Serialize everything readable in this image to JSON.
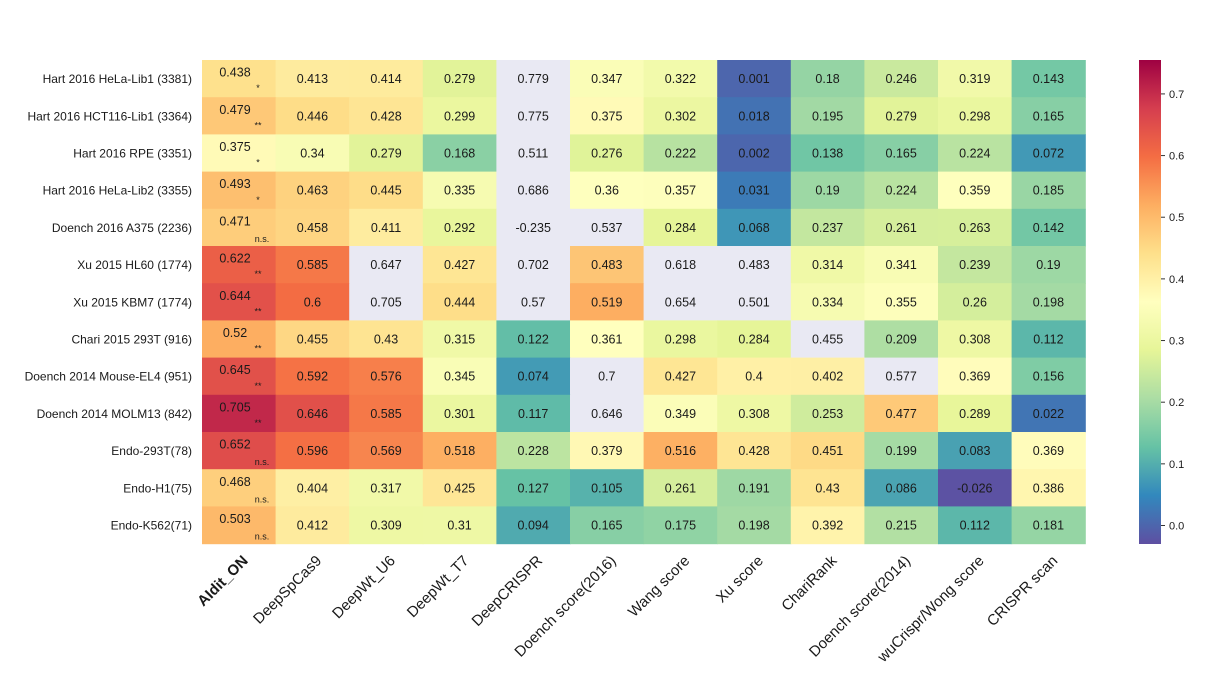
{
  "chart_data": {
    "type": "heatmap",
    "rows": [
      "Hart 2016 HeLa-Lib1 (3381)",
      "Hart 2016 HCT116-Lib1 (3364)",
      "Hart 2016 RPE (3351)",
      "Hart 2016 HeLa-Lib2 (3355)",
      "Doench 2016 A375 (2236)",
      "Xu 2015 HL60 (1774)",
      "Xu 2015 KBM7 (1774)",
      "Chari 2015 293T (916)",
      "Doench 2014 Mouse-EL4 (951)",
      "Doench 2014 MOLM13 (842)",
      "Endo-293T(78)",
      "Endo-H1(75)",
      "Endo-K562(71)"
    ],
    "columns": [
      "AIdit_ON",
      "DeepSpCas9",
      "DeepWt_U6",
      "DeepWt_T7",
      "DeepCRISPR",
      "Doench score(2016)",
      "Wang score",
      "Xu score",
      "ChariRank",
      "Doench score(2014)",
      "wuCrispr/Wong score",
      "CRISPR scan"
    ],
    "values": [
      [
        0.438,
        0.413,
        0.414,
        0.279,
        0.779,
        0.347,
        0.322,
        0.001,
        0.18,
        0.246,
        0.319,
        0.143
      ],
      [
        0.479,
        0.446,
        0.428,
        0.299,
        0.775,
        0.375,
        0.302,
        0.018,
        0.195,
        0.279,
        0.298,
        0.165
      ],
      [
        0.375,
        0.34,
        0.279,
        0.168,
        0.511,
        0.276,
        0.222,
        0.002,
        0.138,
        0.165,
        0.224,
        0.072
      ],
      [
        0.493,
        0.463,
        0.445,
        0.335,
        0.686,
        0.36,
        0.357,
        0.031,
        0.19,
        0.224,
        0.359,
        0.185
      ],
      [
        0.471,
        0.458,
        0.411,
        0.292,
        -0.235,
        0.537,
        0.284,
        0.068,
        0.237,
        0.261,
        0.263,
        0.142
      ],
      [
        0.622,
        0.585,
        0.647,
        0.427,
        0.702,
        0.483,
        0.618,
        0.483,
        0.314,
        0.341,
        0.239,
        0.19
      ],
      [
        0.644,
        0.6,
        0.705,
        0.444,
        0.57,
        0.519,
        0.654,
        0.501,
        0.334,
        0.355,
        0.26,
        0.198
      ],
      [
        0.52,
        0.455,
        0.43,
        0.315,
        0.122,
        0.361,
        0.298,
        0.284,
        0.455,
        0.209,
        0.308,
        0.112
      ],
      [
        0.645,
        0.592,
        0.576,
        0.345,
        0.074,
        0.7,
        0.427,
        0.4,
        0.402,
        0.577,
        0.369,
        0.156
      ],
      [
        0.705,
        0.646,
        0.585,
        0.301,
        0.117,
        0.646,
        0.349,
        0.308,
        0.253,
        0.477,
        0.289,
        0.022
      ],
      [
        0.652,
        0.596,
        0.569,
        0.518,
        0.228,
        0.379,
        0.516,
        0.428,
        0.451,
        0.199,
        0.083,
        0.369
      ],
      [
        0.468,
        0.404,
        0.317,
        0.425,
        0.127,
        0.105,
        0.261,
        0.191,
        0.43,
        0.086,
        -0.026,
        0.386
      ],
      [
        0.503,
        0.412,
        0.309,
        0.31,
        0.094,
        0.165,
        0.175,
        0.198,
        0.392,
        0.215,
        0.112,
        0.181
      ]
    ],
    "significance_first_column": [
      "*",
      "**",
      "*",
      "*",
      "n.s.",
      "**",
      "**",
      "**",
      "**",
      "**",
      "n.s.",
      "n.s.",
      "n.s."
    ],
    "missing_cells": [
      [
        0,
        4
      ],
      [
        1,
        4
      ],
      [
        2,
        4
      ],
      [
        3,
        4
      ],
      [
        4,
        4
      ],
      [
        4,
        5
      ],
      [
        5,
        2
      ],
      [
        5,
        4
      ],
      [
        5,
        6
      ],
      [
        5,
        7
      ],
      [
        6,
        2
      ],
      [
        6,
        4
      ],
      [
        6,
        6
      ],
      [
        6,
        7
      ],
      [
        7,
        8
      ],
      [
        8,
        5
      ],
      [
        8,
        9
      ],
      [
        9,
        5
      ]
    ],
    "colorbar": {
      "colormap": "Spectral_r",
      "vmin": -0.03,
      "vmax": 0.755,
      "ticks": [
        0.0,
        0.1,
        0.2,
        0.3,
        0.4,
        0.5,
        0.6,
        0.7
      ],
      "tick_labels": [
        "0.0",
        "0.1",
        "0.2",
        "0.3",
        "0.4",
        "0.5",
        "0.6",
        "0.7"
      ]
    },
    "missing_color": "#e9e9f3",
    "bold_column": "AIdit_ON"
  }
}
